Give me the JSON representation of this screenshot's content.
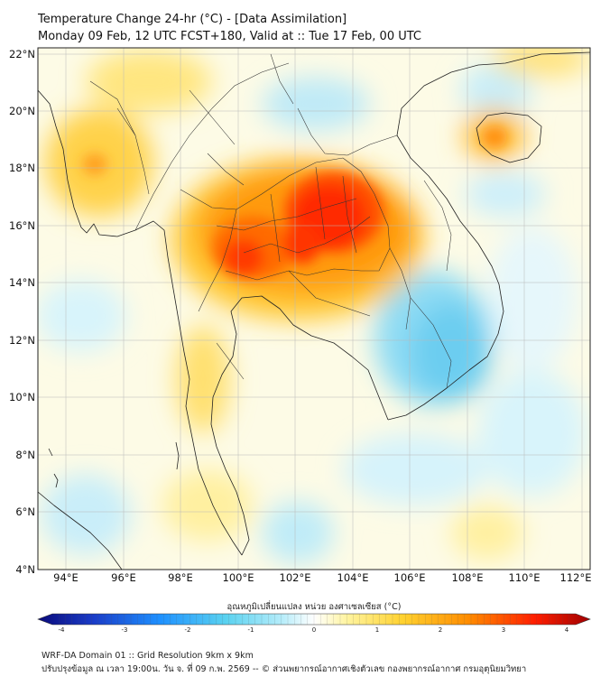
{
  "title": {
    "line1": "Temperature Change 24-hr (°C) - [Data Assimilation]",
    "line2": "Monday 09 Feb, 12 UTC FCST+180, Valid at :: Tue 17 Feb, 00 UTC"
  },
  "map": {
    "lat_labels": [
      "22°N",
      "20°N",
      "18°N",
      "16°N",
      "14°N",
      "12°N",
      "10°N",
      "8°N",
      "6°N",
      "4°N"
    ],
    "lon_labels": [
      "94°E",
      "96°E",
      "98°E",
      "100°E",
      "102°E",
      "104°E",
      "106°E",
      "108°E",
      "110°E",
      "112°E"
    ],
    "lat_range": [
      4,
      22.3
    ],
    "lon_range": [
      93,
      112.3
    ]
  },
  "colorbar": {
    "title": "อุณหภูมิเปลี่ยนแปลง หน่วย องศาเซลเซียส (°C)",
    "ticks": [
      "-4",
      "-3",
      "-2",
      "-1",
      "0",
      "1",
      "2",
      "3",
      "4"
    ],
    "range": [
      -4,
      4
    ],
    "colors": [
      "#0a0a7a",
      "#1a3cc8",
      "#1e90ff",
      "#5ad2f0",
      "#b4ecfa",
      "#ffffff",
      "#fff4a0",
      "#ffd230",
      "#ff8c00",
      "#ff1e00",
      "#a00000"
    ]
  },
  "footer": {
    "line1": "WRF-DA Domain 01 :: Grid Resolution 9km x 9km",
    "line2": "ปรับปรุงข้อมูล ณ เวลา 19:00น. วัน จ. ที่ 09 ก.พ. 2569 -- © ส่วนพยากรณ์อากาศเชิงตัวเลข กองพยากรณ์อากาศ กรมอุตุนิยมวิทยา"
  }
}
